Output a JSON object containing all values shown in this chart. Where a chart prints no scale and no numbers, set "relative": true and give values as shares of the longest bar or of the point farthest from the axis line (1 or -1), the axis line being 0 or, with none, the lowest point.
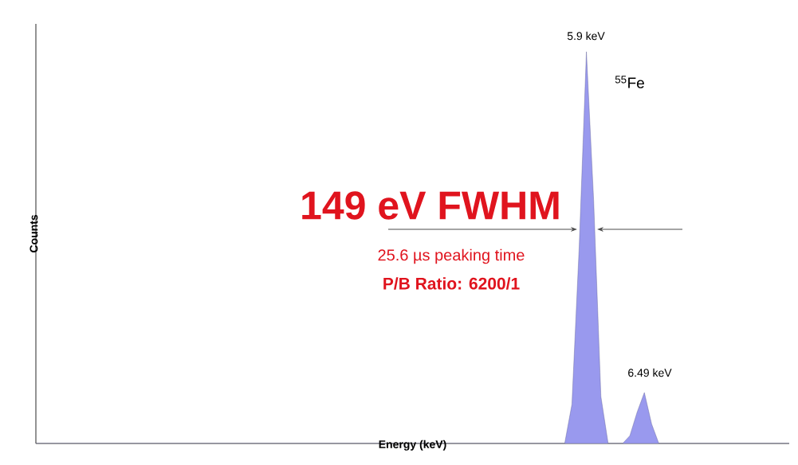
{
  "chart_data": {
    "type": "area",
    "relative": true,
    "xlabel": "Energy (keV)",
    "ylabel": "Counts",
    "color": "#9999ee",
    "categories": [
      null,
      null,
      null,
      null,
      null,
      null,
      null,
      null,
      null,
      null,
      null,
      null,
      null,
      null,
      null,
      null,
      null,
      null,
      null,
      null,
      null,
      null,
      null,
      null,
      null,
      null,
      null,
      null,
      null,
      null,
      null,
      null,
      null,
      null,
      null,
      null,
      null,
      null,
      null,
      null,
      null,
      null,
      null,
      null,
      null,
      null,
      null,
      null,
      null,
      null,
      null,
      null,
      null,
      null,
      null,
      null,
      null,
      null,
      null,
      null,
      null,
      null,
      null,
      null,
      null,
      null,
      null,
      null,
      null,
      null,
      null,
      null,
      null,
      null,
      null,
      null,
      null,
      null,
      null,
      null,
      null,
      null,
      null,
      null,
      null,
      null,
      null,
      null,
      null,
      null,
      null,
      null,
      null,
      null,
      null,
      null,
      null,
      null,
      null,
      null,
      null,
      null,
      null,
      null,
      null
    ],
    "values": [
      0,
      0,
      0,
      0,
      0,
      0,
      0,
      0,
      0,
      0,
      0,
      0,
      0,
      0,
      0,
      0,
      0,
      0,
      0,
      0,
      0,
      0,
      0,
      0,
      0,
      0,
      0,
      0,
      0,
      0,
      0,
      0,
      0,
      0,
      0,
      0,
      0,
      0,
      0,
      0,
      0,
      0,
      0,
      0,
      0,
      0,
      0,
      0,
      0,
      0,
      0,
      0,
      0,
      0,
      0,
      0,
      0,
      0,
      0,
      0,
      0,
      0,
      0,
      0,
      0,
      0,
      0,
      0,
      0,
      0,
      0,
      0,
      0,
      0,
      0.1,
      0.5,
      1,
      0.62,
      0.12,
      0,
      0,
      0,
      0.02,
      0.08,
      0.13,
      0.05,
      0,
      0,
      0,
      0,
      0,
      0,
      0,
      0,
      0,
      0,
      0,
      0,
      0,
      0,
      0,
      0,
      0,
      0,
      0
    ],
    "annotations": [
      "5.9 keV",
      "$^{55}$Fe",
      "149 eV FWHM",
      "25.6 µs peaking time",
      "P/B Ratio: 6200/1",
      "6.49 keV"
    ]
  }
}
